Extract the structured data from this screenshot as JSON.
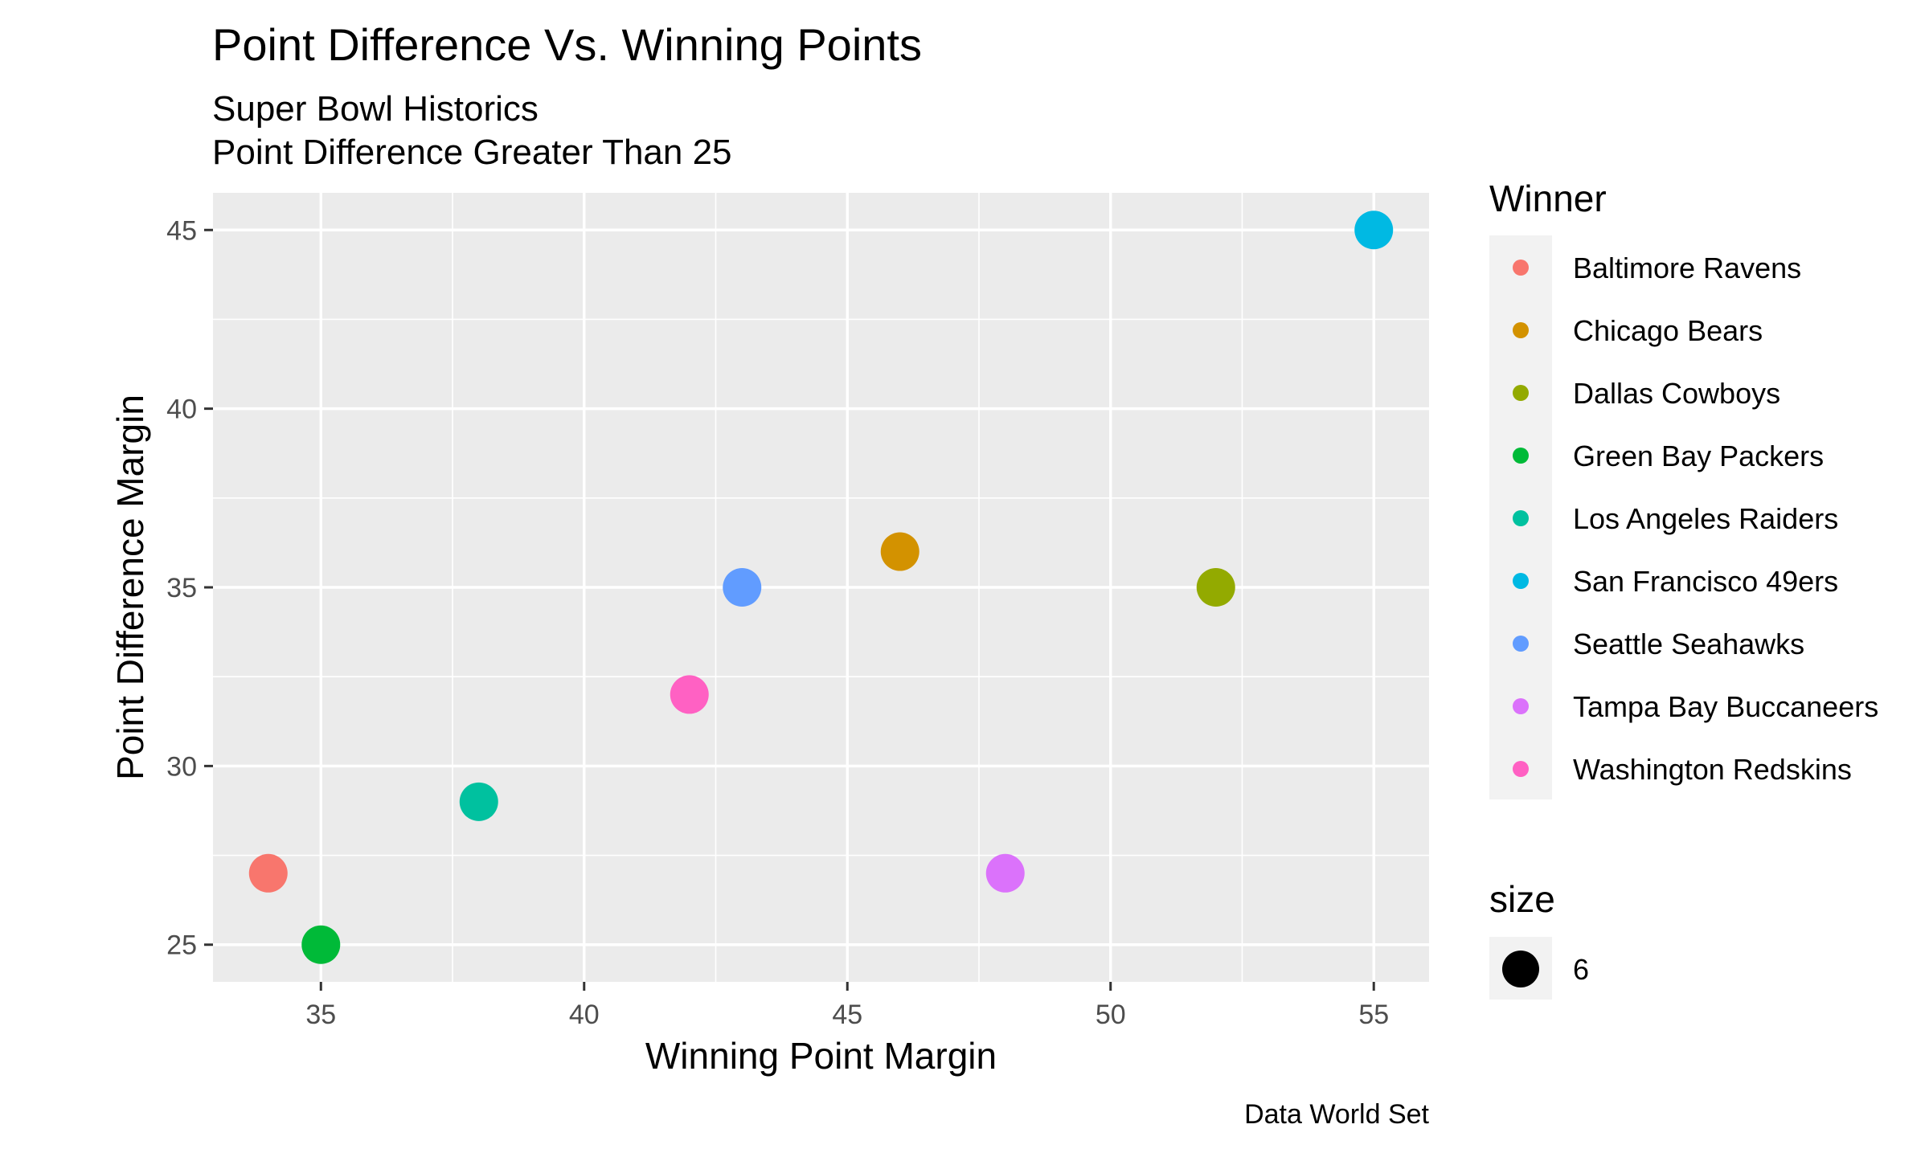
{
  "chart_data": {
    "type": "scatter",
    "title": "Point Difference Vs. Winning Points",
    "subtitle_lines": [
      "Super Bowl Historics",
      "Point Difference Greater Than 25"
    ],
    "xlabel": "Winning Point Margin",
    "ylabel": "Point Difference Margin",
    "caption": "Data World Set",
    "xlim": [
      32.95,
      56.05
    ],
    "ylim": [
      23.96,
      46.04
    ],
    "x_ticks": [
      35,
      40,
      45,
      50,
      55
    ],
    "y_ticks": [
      25,
      30,
      35,
      40,
      45
    ],
    "grid": true,
    "legend": {
      "title": "Winner",
      "position": "right",
      "entries": [
        {
          "name": "Baltimore Ravens",
          "color": "#F8766D"
        },
        {
          "name": "Chicago Bears",
          "color": "#D39200"
        },
        {
          "name": "Dallas Cowboys",
          "color": "#93AA00"
        },
        {
          "name": "Green Bay Packers",
          "color": "#00BA38"
        },
        {
          "name": "Los Angeles Raiders",
          "color": "#00C19F"
        },
        {
          "name": "San Francisco 49ers",
          "color": "#00B9E3"
        },
        {
          "name": "Seattle Seahawks",
          "color": "#619CFF"
        },
        {
          "name": "Tampa Bay Buccaneers",
          "color": "#DB72FB"
        },
        {
          "name": "Washington Redskins",
          "color": "#FF61C3"
        }
      ]
    },
    "size_legend": {
      "title": "size",
      "value": "6"
    },
    "points": [
      {
        "winner": "Baltimore Ravens",
        "x": 34,
        "y": 27
      },
      {
        "winner": "Green Bay Packers",
        "x": 35,
        "y": 25
      },
      {
        "winner": "Los Angeles Raiders",
        "x": 38,
        "y": 29
      },
      {
        "winner": "Washington Redskins",
        "x": 42,
        "y": 32
      },
      {
        "winner": "Seattle Seahawks",
        "x": 43,
        "y": 35
      },
      {
        "winner": "Chicago Bears",
        "x": 46,
        "y": 36
      },
      {
        "winner": "Tampa Bay Buccaneers",
        "x": 48,
        "y": 27
      },
      {
        "winner": "Dallas Cowboys",
        "x": 52,
        "y": 35
      },
      {
        "winner": "San Francisco 49ers",
        "x": 55,
        "y": 45
      }
    ],
    "colors": {
      "panel_background": "#EBEBEB",
      "grid_major": "#FFFFFF",
      "legend_key_background": "#F2F2F2",
      "size_point": "#000000"
    }
  }
}
